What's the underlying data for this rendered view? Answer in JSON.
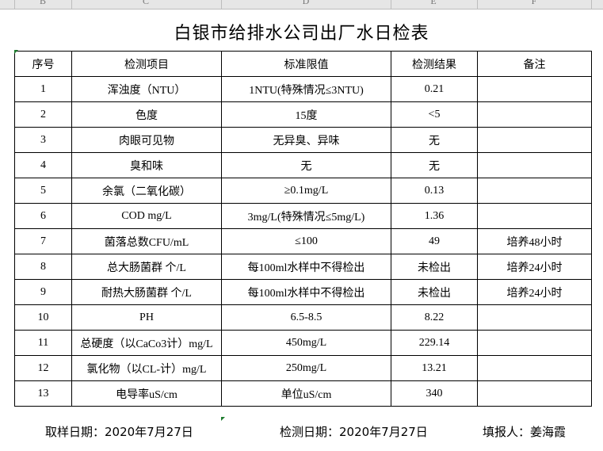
{
  "column_headers": [
    "B",
    "C",
    "D",
    "E",
    "F"
  ],
  "title": "白银市给排水公司出厂水日检表",
  "table": {
    "headers": [
      "序号",
      "检测项目",
      "标准限值",
      "检测结果",
      "备注"
    ],
    "rows": [
      [
        "1",
        "浑浊度（NTU）",
        "1NTU(特殊情况≤3NTU)",
        "0.21",
        ""
      ],
      [
        "2",
        "色度",
        "15度",
        "<5",
        ""
      ],
      [
        "3",
        "肉眼可见物",
        "无异臭、异味",
        "无",
        ""
      ],
      [
        "4",
        "臭和味",
        "无",
        "无",
        ""
      ],
      [
        "5",
        "余氯（二氧化碳）",
        "≥0.1mg/L",
        "0.13",
        ""
      ],
      [
        "6",
        "COD          mg/L",
        "3mg/L(特殊情况≤5mg/L)",
        "1.36",
        ""
      ],
      [
        "7",
        "菌落总数CFU/mL",
        "≤100",
        "49",
        "培养48小时"
      ],
      [
        "8",
        "总大肠菌群 个/L",
        "每100ml水样中不得检出",
        "未检出",
        "培养24小时"
      ],
      [
        "9",
        "耐热大肠菌群 个/L",
        "每100ml水样中不得检出",
        "未检出",
        "培养24小时"
      ],
      [
        "10",
        "PH",
        "6.5-8.5",
        "8.22",
        ""
      ],
      [
        "11",
        "总硬度（以CaCo3计）mg/L",
        "450mg/L",
        "229.14",
        ""
      ],
      [
        "12",
        "氯化物（以CL-计）mg/L",
        "250mg/L",
        "13.21",
        ""
      ],
      [
        "13",
        "电导率uS/cm",
        "单位uS/cm",
        "340",
        ""
      ]
    ]
  },
  "footer": {
    "sampling_date": "取样日期：2020年7月27日",
    "test_date": "检测日期：2020年7月27日",
    "reporter": "填报人：姜海霞"
  }
}
